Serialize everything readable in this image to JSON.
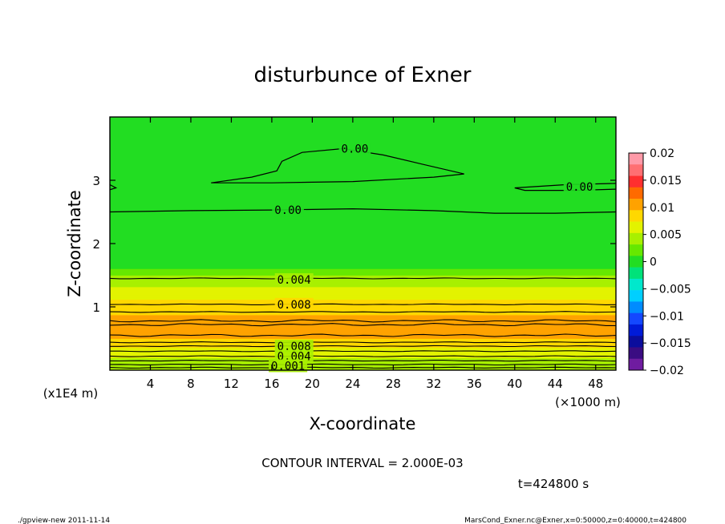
{
  "chart_data": {
    "type": "heatmap",
    "title": "disturbunce of Exner",
    "xlabel": "X-coordinate",
    "ylabel": "Z-coordinate",
    "x_unit": "(×1000 m)",
    "y_unit": "(x1E4 m)",
    "xlim": [
      0,
      50
    ],
    "ylim": [
      0,
      4
    ],
    "x_ticks": [
      4,
      8,
      12,
      16,
      20,
      24,
      28,
      32,
      36,
      40,
      44,
      48
    ],
    "y_ticks": [
      1,
      2,
      3
    ],
    "contour_interval_text": "CONTOUR INTERVAL = 2.000E-03",
    "time_text": "t=424800 s",
    "contour_labels": [
      {
        "text": "0.00",
        "x": 24.2,
        "z": 3.5
      },
      {
        "text": "0.00",
        "x": 46.4,
        "z": 2.9
      },
      {
        "text": "0.00",
        "x": 17.6,
        "z": 2.53
      },
      {
        "text": "0.004",
        "x": 18.2,
        "z": 1.43
      },
      {
        "text": "0.008",
        "x": 18.2,
        "z": 1.04
      },
      {
        "text": "0.008",
        "x": 18.2,
        "z": 0.38
      },
      {
        "text": "0.004",
        "x": 18.2,
        "z": 0.22
      },
      {
        "text": "0.001",
        "x": 17.6,
        "z": 0.07
      }
    ],
    "colorbar": {
      "ticks": [
        0.02,
        0.015,
        0.01,
        0.005,
        0,
        -0.005,
        -0.01,
        -0.015,
        -0.02
      ],
      "tick_labels": [
        "0.02",
        "0.015",
        "0.01",
        "0.005",
        "0",
        "−0.005",
        "−0.01",
        "−0.015",
        "−0.02"
      ],
      "bands": [
        "#ff9aa8",
        "#ff6f72",
        "#ff2f2f",
        "#ff6a00",
        "#ffa200",
        "#ffd800",
        "#e3f300",
        "#a8f000",
        "#66e800",
        "#22dd22",
        "#00e27a",
        "#00e8cc",
        "#00cfff",
        "#008cff",
        "#1448ff",
        "#001bd8",
        "#0b0d9c",
        "#3a0c82",
        "#6f1ca0"
      ],
      "range": [
        -0.02,
        0.02
      ]
    },
    "z_profile_levels": [
      {
        "z": 0.0,
        "v": 0.003
      },
      {
        "z": 0.05,
        "v": 0.004
      },
      {
        "z": 0.15,
        "v": 0.005
      },
      {
        "z": 0.28,
        "v": 0.006
      },
      {
        "z": 0.4,
        "v": 0.008
      },
      {
        "z": 0.55,
        "v": 0.01
      },
      {
        "z": 0.72,
        "v": 0.0105
      },
      {
        "z": 0.95,
        "v": 0.009
      },
      {
        "z": 1.15,
        "v": 0.007
      },
      {
        "z": 1.35,
        "v": 0.005
      },
      {
        "z": 1.48,
        "v": 0.0035
      },
      {
        "z": 1.6,
        "v": 0.0015
      },
      {
        "z": 1.62,
        "v": 0.0
      }
    ]
  },
  "footer": {
    "left": "./gpview-new  2011-11-14",
    "right": "MarsCond_Exner.nc@Exner,x=0:50000,z=0:40000,t=424800"
  }
}
